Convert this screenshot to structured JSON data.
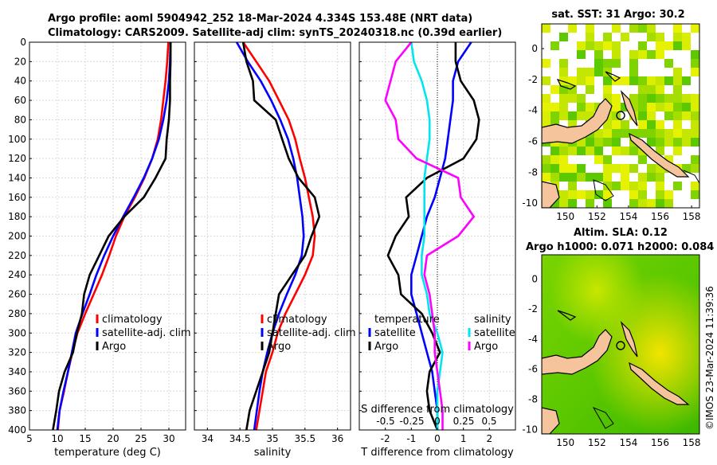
{
  "title": {
    "line1": "Argo profile: aoml 5904942_252 18-Mar-2024 4.334S 153.48E (NRT data)",
    "line2": "Climatology: CARS2009. Satellite-adj clim: synTS_20240318.nc (0.39d earlier)"
  },
  "colors": {
    "climatology": "#ff0000",
    "satellite": "#0000ff",
    "argo": "#000000",
    "salinity_sat": "#00e5ee",
    "salinity_argo": "#ff00ff"
  },
  "footer": "©IMOS 23-Mar-2024 11:39:36",
  "chart_data": [
    {
      "type": "line",
      "name": "temperature",
      "xlabel": "temperature (deg C)",
      "ylabel": "depth",
      "xlim": [
        5,
        33
      ],
      "ylim": [
        400,
        0
      ],
      "xticks": [
        5,
        10,
        15,
        20,
        25,
        30
      ],
      "yticks": [
        0,
        20,
        40,
        60,
        80,
        100,
        120,
        140,
        160,
        180,
        200,
        220,
        240,
        260,
        280,
        300,
        320,
        340,
        360,
        380,
        400
      ],
      "legend": [
        "climatology",
        "satellite-adj. clim",
        "Argo"
      ],
      "series": [
        {
          "name": "climatology",
          "color": "#ff0000",
          "x": [
            29.9,
            29.7,
            29.4,
            29.0,
            28.6,
            28.0,
            27.0,
            25.6,
            23.9,
            22.0,
            20.5,
            19.3,
            18.0,
            16.5,
            15.0,
            13.6,
            12.7,
            11.9,
            11.2,
            10.4,
            10.1
          ],
          "y": [
            0,
            20,
            40,
            60,
            80,
            100,
            120,
            140,
            160,
            180,
            200,
            220,
            240,
            260,
            280,
            300,
            320,
            340,
            360,
            380,
            400
          ]
        },
        {
          "name": "satellite-adj. clim",
          "color": "#0000ff",
          "x": [
            30.3,
            30.2,
            30.0,
            29.6,
            29.0,
            28.2,
            27.0,
            25.5,
            23.7,
            21.8,
            20.0,
            18.4,
            17.0,
            15.8,
            14.5,
            13.3,
            12.6,
            11.9,
            11.1,
            10.4,
            10.0
          ],
          "y": [
            0,
            20,
            40,
            60,
            80,
            100,
            120,
            140,
            160,
            180,
            200,
            220,
            240,
            260,
            280,
            300,
            320,
            340,
            360,
            380,
            400
          ]
        },
        {
          "name": "Argo",
          "color": "#000000",
          "x": [
            30.3,
            30.3,
            30.2,
            30.2,
            30.0,
            29.6,
            29.4,
            27.6,
            25.5,
            22.0,
            19.2,
            17.5,
            15.8,
            14.8,
            14.4,
            13.5,
            12.8,
            11.3,
            10.3,
            9.8,
            9.2
          ],
          "y": [
            0,
            20,
            40,
            60,
            80,
            100,
            120,
            140,
            160,
            180,
            200,
            220,
            240,
            260,
            280,
            300,
            320,
            340,
            360,
            380,
            400
          ]
        }
      ]
    },
    {
      "type": "line",
      "name": "salinity",
      "xlabel": "salinity",
      "xlim": [
        33.8,
        36.2
      ],
      "ylim": [
        400,
        0
      ],
      "xticks": [
        34,
        34.5,
        35,
        35.5,
        36
      ],
      "legend": [
        "climatology",
        "satellite-adj. clim",
        "Argo"
      ],
      "series": [
        {
          "name": "climatology",
          "color": "#ff0000",
          "x": [
            34.55,
            34.75,
            34.95,
            35.1,
            35.25,
            35.35,
            35.42,
            35.5,
            35.56,
            35.62,
            35.65,
            35.62,
            35.5,
            35.35,
            35.2,
            35.08,
            35.0,
            34.9,
            34.85,
            34.8,
            34.75
          ],
          "y": [
            0,
            20,
            40,
            60,
            80,
            100,
            120,
            140,
            160,
            180,
            200,
            220,
            240,
            260,
            280,
            300,
            320,
            340,
            360,
            380,
            400
          ]
        },
        {
          "name": "satellite-adj. clim",
          "color": "#0000ff",
          "x": [
            34.45,
            34.62,
            34.82,
            34.98,
            35.12,
            35.24,
            35.32,
            35.38,
            35.42,
            35.46,
            35.48,
            35.45,
            35.35,
            35.22,
            35.1,
            35.0,
            34.92,
            34.85,
            34.8,
            34.76,
            34.72
          ],
          "y": [
            0,
            20,
            40,
            60,
            80,
            100,
            120,
            140,
            160,
            180,
            200,
            220,
            240,
            260,
            280,
            300,
            320,
            340,
            360,
            380,
            400
          ]
        },
        {
          "name": "Argo",
          "color": "#000000",
          "x": [
            34.55,
            34.6,
            34.7,
            34.72,
            35.05,
            35.15,
            35.25,
            35.4,
            35.65,
            35.72,
            35.6,
            35.5,
            35.3,
            35.1,
            35.05,
            35.0,
            34.95,
            34.85,
            34.75,
            34.65,
            34.6
          ],
          "y": [
            0,
            20,
            40,
            60,
            80,
            100,
            120,
            140,
            160,
            180,
            200,
            220,
            240,
            260,
            280,
            300,
            320,
            340,
            360,
            380,
            400
          ]
        }
      ]
    },
    {
      "type": "line",
      "name": "difference",
      "xlabel": "T difference from climatology",
      "xlabel_top": "S difference from climatology",
      "xlim": [
        -3,
        3
      ],
      "ylim": [
        400,
        0
      ],
      "xticks": [
        -2,
        -1,
        0,
        1,
        2
      ],
      "xticks_salinity": [
        "-0.5",
        "-0.25",
        "0",
        "0.25",
        "0.5"
      ],
      "legend_temperature": [
        "temperature",
        "satellite",
        "Argo"
      ],
      "legend_salinity": [
        "salinity",
        "satellite"
      ],
      "series": [
        {
          "name": "temperature satellite",
          "color": "#0000ff",
          "x": [
            1.3,
            0.8,
            0.6,
            0.6,
            0.5,
            0.4,
            0.3,
            0.1,
            -0.1,
            -0.4,
            -0.6,
            -0.8,
            -1.0,
            -1.0,
            -0.8,
            -0.6,
            -0.4,
            -0.2,
            -0.1,
            0.0,
            0.0
          ],
          "y": [
            0,
            20,
            40,
            60,
            80,
            100,
            120,
            140,
            160,
            180,
            200,
            220,
            240,
            260,
            280,
            300,
            320,
            340,
            360,
            380,
            400
          ]
        },
        {
          "name": "temperature Argo",
          "color": "#000000",
          "x": [
            0.7,
            0.7,
            0.9,
            1.4,
            1.6,
            1.5,
            1.0,
            -0.4,
            -1.2,
            -1.1,
            -1.6,
            -1.9,
            -1.5,
            -1.4,
            -0.6,
            -0.2,
            0.1,
            -0.3,
            -0.4,
            -0.3,
            0.0
          ],
          "y": [
            0,
            20,
            40,
            60,
            80,
            100,
            120,
            140,
            160,
            180,
            200,
            220,
            240,
            260,
            280,
            300,
            320,
            340,
            360,
            380,
            400
          ]
        },
        {
          "name": "salinity satellite",
          "color": "#00e5ee",
          "x": [
            -1.0,
            -0.9,
            -0.6,
            -0.4,
            -0.3,
            -0.3,
            -0.4,
            -0.5,
            -0.5,
            -0.5,
            -0.5,
            -0.6,
            -0.6,
            -0.4,
            -0.3,
            0.0,
            0.2,
            0.1,
            0.0,
            0.0,
            0.0
          ],
          "y": [
            0,
            20,
            40,
            60,
            80,
            100,
            120,
            140,
            160,
            180,
            200,
            220,
            240,
            260,
            280,
            300,
            320,
            340,
            360,
            380,
            400
          ]
        },
        {
          "name": "salinity Argo",
          "color": "#ff00ff",
          "x": [
            -1.0,
            -1.6,
            -1.8,
            -2.0,
            -1.6,
            -1.5,
            -0.8,
            0.8,
            0.9,
            1.4,
            0.8,
            -0.4,
            -0.5,
            -0.3,
            -0.2,
            -0.1,
            -0.1,
            0.0,
            0.1,
            0.2,
            0.2
          ],
          "y": [
            0,
            20,
            40,
            60,
            80,
            100,
            120,
            140,
            160,
            180,
            200,
            220,
            240,
            260,
            280,
            300,
            320,
            340,
            360,
            380,
            400
          ]
        }
      ]
    },
    {
      "type": "heatmap",
      "name": "sst-map",
      "title": "sat. SST: 31 Argo: 30.2",
      "xlim": [
        148.5,
        158.5
      ],
      "ylim": [
        -10.3,
        1.6
      ],
      "xticks": [
        150,
        152,
        154,
        156,
        158
      ],
      "yticks": [
        0,
        -2,
        -4,
        -6,
        -8,
        -10
      ],
      "argo_position": {
        "lon": 153.48,
        "lat": -4.334
      }
    },
    {
      "type": "heatmap",
      "name": "sla-map",
      "title": "Altim. SLA: 0.12",
      "subtitle": "Argo h1000: 0.071 h2000: 0.084",
      "xlim": [
        148.5,
        158.5
      ],
      "ylim": [
        -10.3,
        1.6
      ],
      "xticks": [
        150,
        152,
        154,
        156,
        158
      ],
      "yticks": [
        0,
        -2,
        -4,
        -6,
        -8,
        -10
      ],
      "argo_position": {
        "lon": 153.48,
        "lat": -4.334
      }
    }
  ]
}
